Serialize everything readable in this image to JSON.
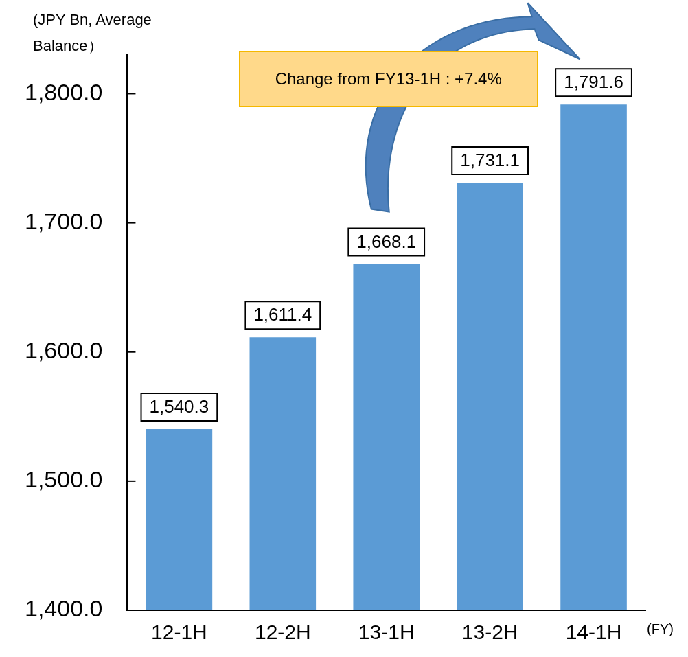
{
  "chart_data": {
    "type": "bar",
    "ylabel": "(JPY Bn, Average Balance）",
    "xlabel": "(FY)",
    "categories": [
      "12-1H",
      "12-2H",
      "13-1H",
      "13-2H",
      "14-1H"
    ],
    "values": [
      1540.3,
      1611.4,
      1668.1,
      1731.1,
      1791.6
    ],
    "color": "#5b9bd5",
    "ylim": [
      1400,
      1830
    ],
    "yticks": [
      {
        "value": 1400,
        "label": "1,400.0"
      },
      {
        "value": 1500,
        "label": "1,500.0"
      },
      {
        "value": 1600,
        "label": "1,600.0"
      },
      {
        "value": 1700,
        "label": "1,700.0"
      },
      {
        "value": 1800,
        "label": "1,800.0"
      }
    ],
    "value_labels": [
      "1,540.3",
      "1,611.4",
      "1,668.1",
      "1,731.1",
      "1,791.6"
    ],
    "annotations": [
      "Change from FY13-1H : +7.4%"
    ],
    "grid": false,
    "legend": false
  }
}
